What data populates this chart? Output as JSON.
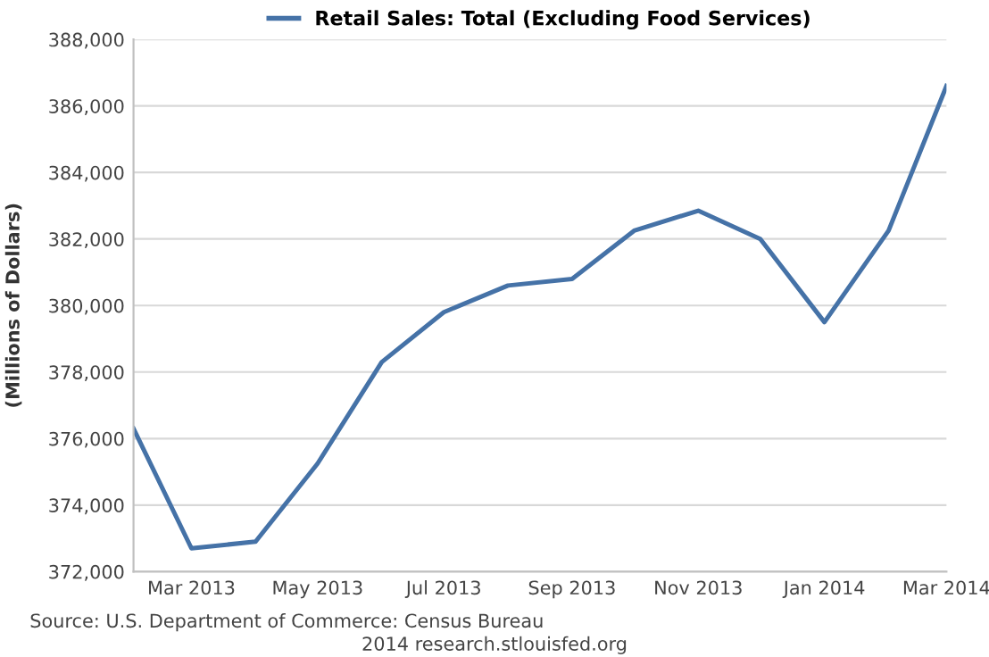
{
  "chart_data": {
    "type": "line",
    "ylabel": "(Millions of Dollars)",
    "x": [
      "2013-02",
      "2013-03",
      "2013-04",
      "2013-05",
      "2013-06",
      "2013-07",
      "2013-08",
      "2013-09",
      "2013-10",
      "2013-11",
      "2013-12",
      "2014-01",
      "2014-02",
      "2014-03"
    ],
    "series": [
      {
        "name": "Retail Sales: Total (Excluding Food Services)",
        "color": "#4572a7",
        "values": [
          376300,
          372700,
          372900,
          375250,
          378300,
          379800,
          380600,
          380800,
          382250,
          382850,
          382000,
          379500,
          382250,
          386600
        ]
      }
    ],
    "xlim": [
      "2013-02",
      "2014-03"
    ],
    "xticks": [
      {
        "value": "2013-03",
        "label": "Mar 2013"
      },
      {
        "value": "2013-05",
        "label": "May 2013"
      },
      {
        "value": "2013-07",
        "label": "Jul 2013"
      },
      {
        "value": "2013-09",
        "label": "Sep 2013"
      },
      {
        "value": "2013-11",
        "label": "Nov 2013"
      },
      {
        "value": "2014-01",
        "label": "Jan 2014"
      },
      {
        "value": "2014-03",
        "label": "Mar 2014"
      }
    ],
    "ylim": [
      372000,
      388000
    ],
    "yticks": [
      {
        "value": 372000,
        "label": "372,000"
      },
      {
        "value": 374000,
        "label": "374,000"
      },
      {
        "value": 376000,
        "label": "376,000"
      },
      {
        "value": 378000,
        "label": "378,000"
      },
      {
        "value": 380000,
        "label": "380,000"
      },
      {
        "value": 382000,
        "label": "382,000"
      },
      {
        "value": 384000,
        "label": "384,000"
      },
      {
        "value": 386000,
        "label": "386,000"
      },
      {
        "value": 388000,
        "label": "388,000"
      }
    ],
    "grid": "y",
    "legend": "top",
    "marker": "none",
    "line_style": "solid",
    "annotations": [
      "Source: U.S. Department of Commerce: Census Bureau",
      "2014 research.stlouisfed.org"
    ]
  }
}
